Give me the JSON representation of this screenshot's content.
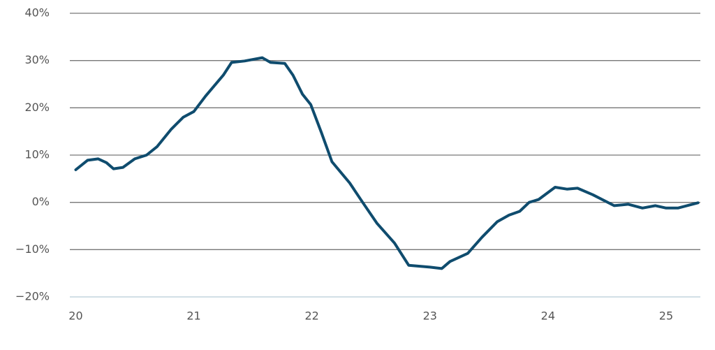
{
  "chart_data": {
    "type": "line",
    "x": [
      20.0,
      20.1,
      20.19,
      20.26,
      20.32,
      20.4,
      20.5,
      20.6,
      20.69,
      20.81,
      20.91,
      21.0,
      21.1,
      21.25,
      21.32,
      21.43,
      21.58,
      21.65,
      21.77,
      21.84,
      21.92,
      21.99,
      22.08,
      22.17,
      22.32,
      22.43,
      22.55,
      22.7,
      22.82,
      23.0,
      23.1,
      23.17,
      23.32,
      23.44,
      23.57,
      23.67,
      23.76,
      23.84,
      23.92,
      24.06,
      24.16,
      24.25,
      24.38,
      24.56,
      24.68,
      24.8,
      24.91,
      25.0,
      25.1,
      25.27
    ],
    "series": [
      {
        "color": "#0f4c6e",
        "values": [
          6.9,
          8.9,
          9.2,
          8.4,
          7.1,
          7.4,
          9.2,
          10.0,
          11.8,
          15.5,
          18.0,
          19.2,
          22.5,
          26.9,
          29.6,
          29.9,
          30.6,
          29.6,
          29.4,
          26.9,
          22.9,
          20.7,
          14.8,
          8.6,
          4.1,
          0,
          -4.4,
          -8.6,
          -13.3,
          -13.7,
          -14.0,
          -12.5,
          -10.8,
          -7.4,
          -4.1,
          -2.7,
          -1.9,
          0,
          0.6,
          3.2,
          2.8,
          3.0,
          1.6,
          -0.7,
          -0.4,
          -1.2,
          -0.7,
          -1.2,
          -1.2,
          -0.1
        ]
      }
    ],
    "xlim": [
      19.95,
      25.29
    ],
    "xticks": [
      20,
      21,
      22,
      23,
      24,
      25
    ],
    "ylim": [
      -20,
      40
    ],
    "yticks": [
      {
        "value": -20,
        "label": "−20%"
      },
      {
        "value": -10,
        "label": "−10%"
      },
      {
        "value": 0,
        "label": "0%"
      },
      {
        "value": 10,
        "label": "10%"
      },
      {
        "value": 20,
        "label": "20%"
      },
      {
        "value": 30,
        "label": "30%"
      },
      {
        "value": 40,
        "label": "40%"
      }
    ],
    "grid": true
  }
}
